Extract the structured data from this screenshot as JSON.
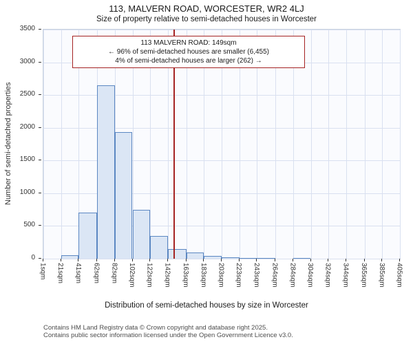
{
  "title": "113, MALVERN ROAD, WORCESTER, WR2 4LJ",
  "subtitle": "Size of property relative to semi-detached houses in Worcester",
  "annotation": {
    "line1": "113 MALVERN ROAD: 149sqm",
    "line2": "← 96% of semi-detached houses are smaller (6,455)",
    "line3": "4% of semi-detached houses are larger (262) →"
  },
  "footer": {
    "line1": "Contains HM Land Registry data © Crown copyright and database right 2025.",
    "line2": "Contains public sector information licensed under the Open Government Licence v3.0."
  },
  "chart_data": {
    "type": "bar",
    "title": "113, MALVERN ROAD, WORCESTER, WR2 4LJ",
    "subtitle": "Size of property relative to semi-detached houses in Worcester",
    "xlabel": "Distribution of semi-detached houses by size in Worcester",
    "ylabel": "Number of semi-detached properties",
    "xlim": [
      1,
      405
    ],
    "ylim": [
      0,
      3500
    ],
    "grid": true,
    "x_tick_values": [
      1,
      21,
      41,
      62,
      82,
      102,
      122,
      142,
      163,
      183,
      203,
      223,
      243,
      264,
      284,
      304,
      324,
      344,
      365,
      385,
      405
    ],
    "x_tick_labels": [
      "1sqm",
      "21sqm",
      "41sqm",
      "62sqm",
      "82sqm",
      "102sqm",
      "122sqm",
      "142sqm",
      "163sqm",
      "183sqm",
      "203sqm",
      "223sqm",
      "243sqm",
      "264sqm",
      "284sqm",
      "304sqm",
      "324sqm",
      "344sqm",
      "365sqm",
      "385sqm",
      "405sqm"
    ],
    "y_ticks": [
      0,
      500,
      1000,
      1500,
      2000,
      2500,
      3000,
      3500
    ],
    "values": [
      0,
      50,
      700,
      2650,
      1930,
      750,
      350,
      150,
      90,
      40,
      20,
      10,
      5,
      0,
      10,
      0,
      0,
      0,
      0,
      0
    ],
    "marker": {
      "value": 149,
      "label": "113 MALVERN ROAD: 149sqm",
      "color": "#a52222"
    },
    "bar_fill": "#dbe6f5",
    "bar_border": "#5b87c2",
    "smaller_pct": "96%",
    "smaller_count": "6,455",
    "larger_pct": "4%",
    "larger_count": "262"
  }
}
